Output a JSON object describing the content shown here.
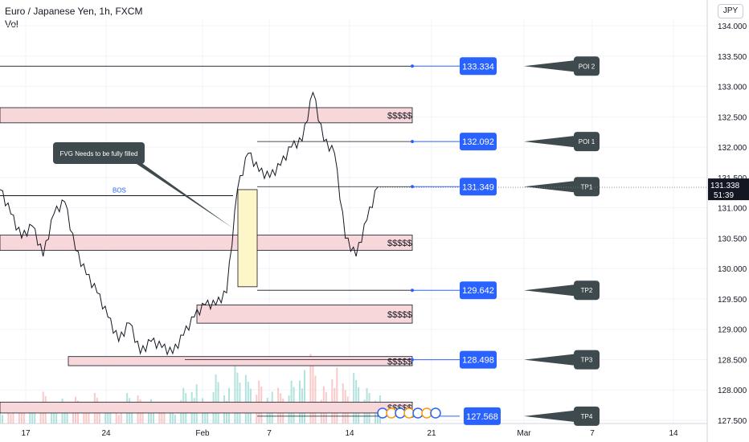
{
  "header": {
    "title": "Euro / Japanese Yen, 1h, FXCM",
    "volume_label": "Vol",
    "currency_button": "JPY"
  },
  "colors": {
    "price_line": "#131722",
    "level_line": "#2962ff",
    "zone_fill": "#f8d7da",
    "zone_border": "#131722",
    "fvg_fill": "#fdf6c9",
    "price_label_bg": "#2962ff",
    "annotation_bg": "#3e4a4d",
    "current_price_bg": "#131722",
    "vol_up": "#7fd1c6",
    "vol_down": "#f6a6a6"
  },
  "chart_data": {
    "type": "line",
    "instrument": "Euro / Japanese Yen",
    "timeframe": "1h",
    "ylim": [
      127.5,
      134.0
    ],
    "y_ticks": [
      127.5,
      128.0,
      128.5,
      129.0,
      129.5,
      130.0,
      130.5,
      131.0,
      131.5,
      132.0,
      132.5,
      133.0,
      133.5,
      134.0
    ],
    "y_tick_labels": [
      "127.500",
      "128.000",
      "128.500",
      "129.000",
      "129.500",
      "130.000",
      "130.500",
      "131.000",
      "131.500",
      "132.000",
      "132.500",
      "133.000",
      "133.500",
      "134.000"
    ],
    "x_tick_labels": [
      "17",
      "24",
      "Feb",
      "7",
      "14",
      "21",
      "Mar",
      "7",
      "14"
    ],
    "series": [
      {
        "x": [
          "Jan 13",
          "Jan 14",
          "Jan 15",
          "Jan 16",
          "Jan 17",
          "Jan 18",
          "Jan 19",
          "Jan 20",
          "Jan 21",
          "Jan 22",
          "Jan 23",
          "Jan 24",
          "Jan 25",
          "Jan 26",
          "Jan 27",
          "Jan 28",
          "Jan 29",
          "Jan 30",
          "Jan 31",
          "Feb 1",
          "Feb 2",
          "Feb 3",
          "Feb 4",
          "Feb 5",
          "Feb 6",
          "Feb 7",
          "Feb 8",
          "Feb 9",
          "Feb 10",
          "Feb 11",
          "Feb 12",
          "Feb 13",
          "Feb 14",
          "Feb 15",
          "Feb 16",
          "Feb 17"
        ],
        "values": [
          131.3,
          130.9,
          130.5,
          130.7,
          130.2,
          130.9,
          131.1,
          130.3,
          129.9,
          129.6,
          129.2,
          128.8,
          129.1,
          128.6,
          128.8,
          128.7,
          128.6,
          128.9,
          129.2,
          129.4,
          129.4,
          129.6,
          131.3,
          131.9,
          131.6,
          131.5,
          131.7,
          132.0,
          132.1,
          132.9,
          132.1,
          131.9,
          130.5,
          130.2,
          130.8,
          131.34
        ]
      }
    ],
    "volume": [
      {
        "x": "Jan 13",
        "value": 12,
        "up": true
      },
      {
        "x": "Jan 14",
        "value": 18,
        "up": false
      },
      {
        "x": "Jan 15",
        "value": 26,
        "up": false
      },
      {
        "x": "Jan 16",
        "value": 20,
        "up": true
      },
      {
        "x": "Jan 17",
        "value": 34,
        "up": false
      },
      {
        "x": "Jan 18",
        "value": 22,
        "up": true
      },
      {
        "x": "Jan 19",
        "value": 28,
        "up": true
      },
      {
        "x": "Jan 20",
        "value": 30,
        "up": false
      },
      {
        "x": "Jan 21",
        "value": 24,
        "up": false
      },
      {
        "x": "Jan 22",
        "value": 36,
        "up": false
      },
      {
        "x": "Jan 23",
        "value": 20,
        "up": true
      },
      {
        "x": "Jan 24",
        "value": 16,
        "up": false
      },
      {
        "x": "Jan 25",
        "value": 38,
        "up": true
      },
      {
        "x": "Jan 26",
        "value": 30,
        "up": false
      },
      {
        "x": "Jan 27",
        "value": 26,
        "up": true
      },
      {
        "x": "Jan 28",
        "value": 22,
        "up": false
      },
      {
        "x": "Jan 29",
        "value": 14,
        "up": true
      },
      {
        "x": "Jan 30",
        "value": 40,
        "up": true
      },
      {
        "x": "Jan 31",
        "value": 44,
        "up": true
      },
      {
        "x": "Feb 1",
        "value": 30,
        "up": true
      },
      {
        "x": "Feb 2",
        "value": 58,
        "up": true
      },
      {
        "x": "Feb 3",
        "value": 42,
        "up": true
      },
      {
        "x": "Feb 4",
        "value": 76,
        "up": true
      },
      {
        "x": "Feb 5",
        "value": 52,
        "up": true
      },
      {
        "x": "Feb 6",
        "value": 46,
        "up": false
      },
      {
        "x": "Feb 7",
        "value": 34,
        "up": true
      },
      {
        "x": "Feb 8",
        "value": 40,
        "up": false
      },
      {
        "x": "Feb 9",
        "value": 48,
        "up": true
      },
      {
        "x": "Feb 10",
        "value": 60,
        "up": true
      },
      {
        "x": "Feb 11",
        "value": 82,
        "up": false
      },
      {
        "x": "Feb 12",
        "value": 44,
        "up": false
      },
      {
        "x": "Feb 13",
        "value": 66,
        "up": false
      },
      {
        "x": "Feb 14",
        "value": 50,
        "up": false
      },
      {
        "x": "Feb 15",
        "value": 54,
        "up": true
      },
      {
        "x": "Feb 16",
        "value": 38,
        "up": true
      },
      {
        "x": "Feb 17",
        "value": 30,
        "up": true
      }
    ],
    "current_price": {
      "value": "131.338",
      "countdown": "51:39"
    },
    "levels": [
      {
        "value": 133.334,
        "label": "133.334",
        "target": "POI 2"
      },
      {
        "value": 132.092,
        "label": "132.092",
        "target": "POI 1"
      },
      {
        "value": 131.349,
        "label": "131.349",
        "target": "TP1"
      },
      {
        "value": 129.642,
        "label": "129.642",
        "target": "TP2"
      },
      {
        "value": 128.498,
        "label": "128.498",
        "target": "TP3"
      },
      {
        "value": 127.568,
        "label": "127.568",
        "target": "TP4"
      }
    ],
    "zones": [
      {
        "top": 132.65,
        "bottom": 132.4,
        "label": "$$$$$"
      },
      {
        "top": 130.55,
        "bottom": 130.3,
        "label": "$$$$$"
      },
      {
        "top": 129.4,
        "bottom": 129.1,
        "label": "$$$$$"
      },
      {
        "top": 128.55,
        "bottom": 128.4,
        "label": "$$$$$"
      },
      {
        "top": 127.8,
        "bottom": 127.62,
        "label": "$$$$$"
      }
    ],
    "bos": {
      "label": "BOS",
      "value": 131.2
    },
    "fvg": {
      "top": 131.3,
      "bottom": 129.7
    },
    "callout": "FVG Needs to be fully filled"
  }
}
